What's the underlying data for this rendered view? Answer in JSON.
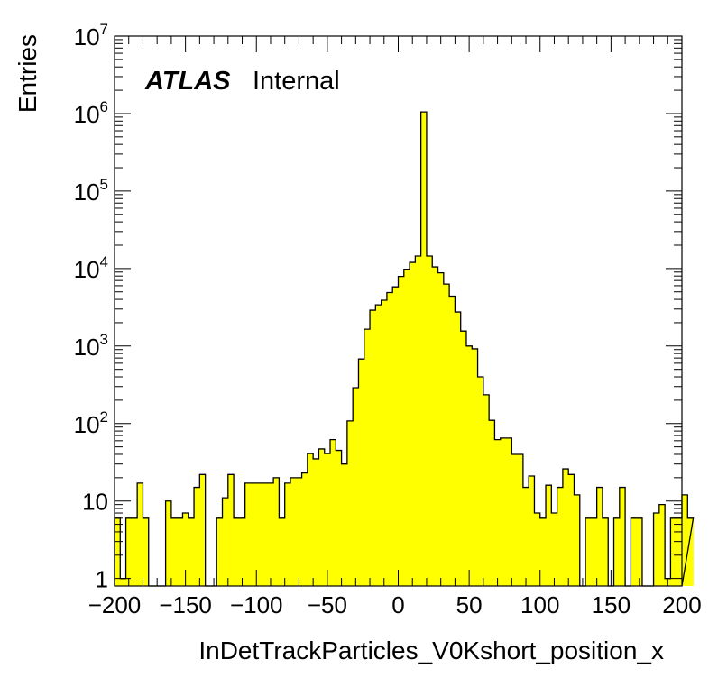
{
  "chart_data": {
    "type": "histogram",
    "title": "",
    "xlabel": "InDetTrackParticles_V0Kshort_position_x",
    "ylabel": "Entries",
    "label": {
      "experiment": "ATLAS",
      "status": "Internal"
    },
    "xlim": [
      -200,
      200
    ],
    "ylim": [
      0.8,
      10000000
    ],
    "yscale": "log",
    "bin_width": 4,
    "x_ticks": [
      "−200",
      "−150",
      "−100",
      "−50",
      "0",
      "50",
      "100",
      "150",
      "200"
    ],
    "y_ticks": [
      {
        "base": "1",
        "exp": ""
      },
      {
        "base": "10",
        "exp": ""
      },
      {
        "base": "10",
        "exp": "2"
      },
      {
        "base": "10",
        "exp": "3"
      },
      {
        "base": "10",
        "exp": "4"
      },
      {
        "base": "10",
        "exp": "5"
      },
      {
        "base": "10",
        "exp": "6"
      },
      {
        "base": "10",
        "exp": "7"
      }
    ],
    "fill_color": "#ffff00",
    "line_color": "#000000",
    "bin_edges_start": -200,
    "values": [
      6,
      1,
      6,
      6,
      17,
      6,
      0,
      0,
      0,
      10,
      6,
      6,
      7,
      6,
      15,
      22,
      0,
      0,
      6,
      11,
      22,
      6,
      6,
      17,
      17,
      17,
      17,
      17,
      20,
      6,
      17,
      20,
      20,
      23,
      41,
      35,
      47,
      41,
      62,
      45,
      30,
      108,
      290,
      680,
      1650,
      2900,
      3400,
      3900,
      4900,
      5800,
      7900,
      9800,
      12000,
      14500,
      1050000,
      14500,
      10500,
      8800,
      6300,
      4400,
      2750,
      1560,
      1000,
      920,
      400,
      235,
      110,
      62,
      65,
      65,
      40,
      40,
      15,
      21,
      7,
      6,
      16,
      7,
      15,
      26,
      22,
      12,
      0,
      6,
      6,
      15,
      6,
      0,
      6,
      15,
      0,
      6,
      6,
      0,
      0,
      7,
      9,
      1,
      6,
      6,
      12,
      6
    ]
  }
}
